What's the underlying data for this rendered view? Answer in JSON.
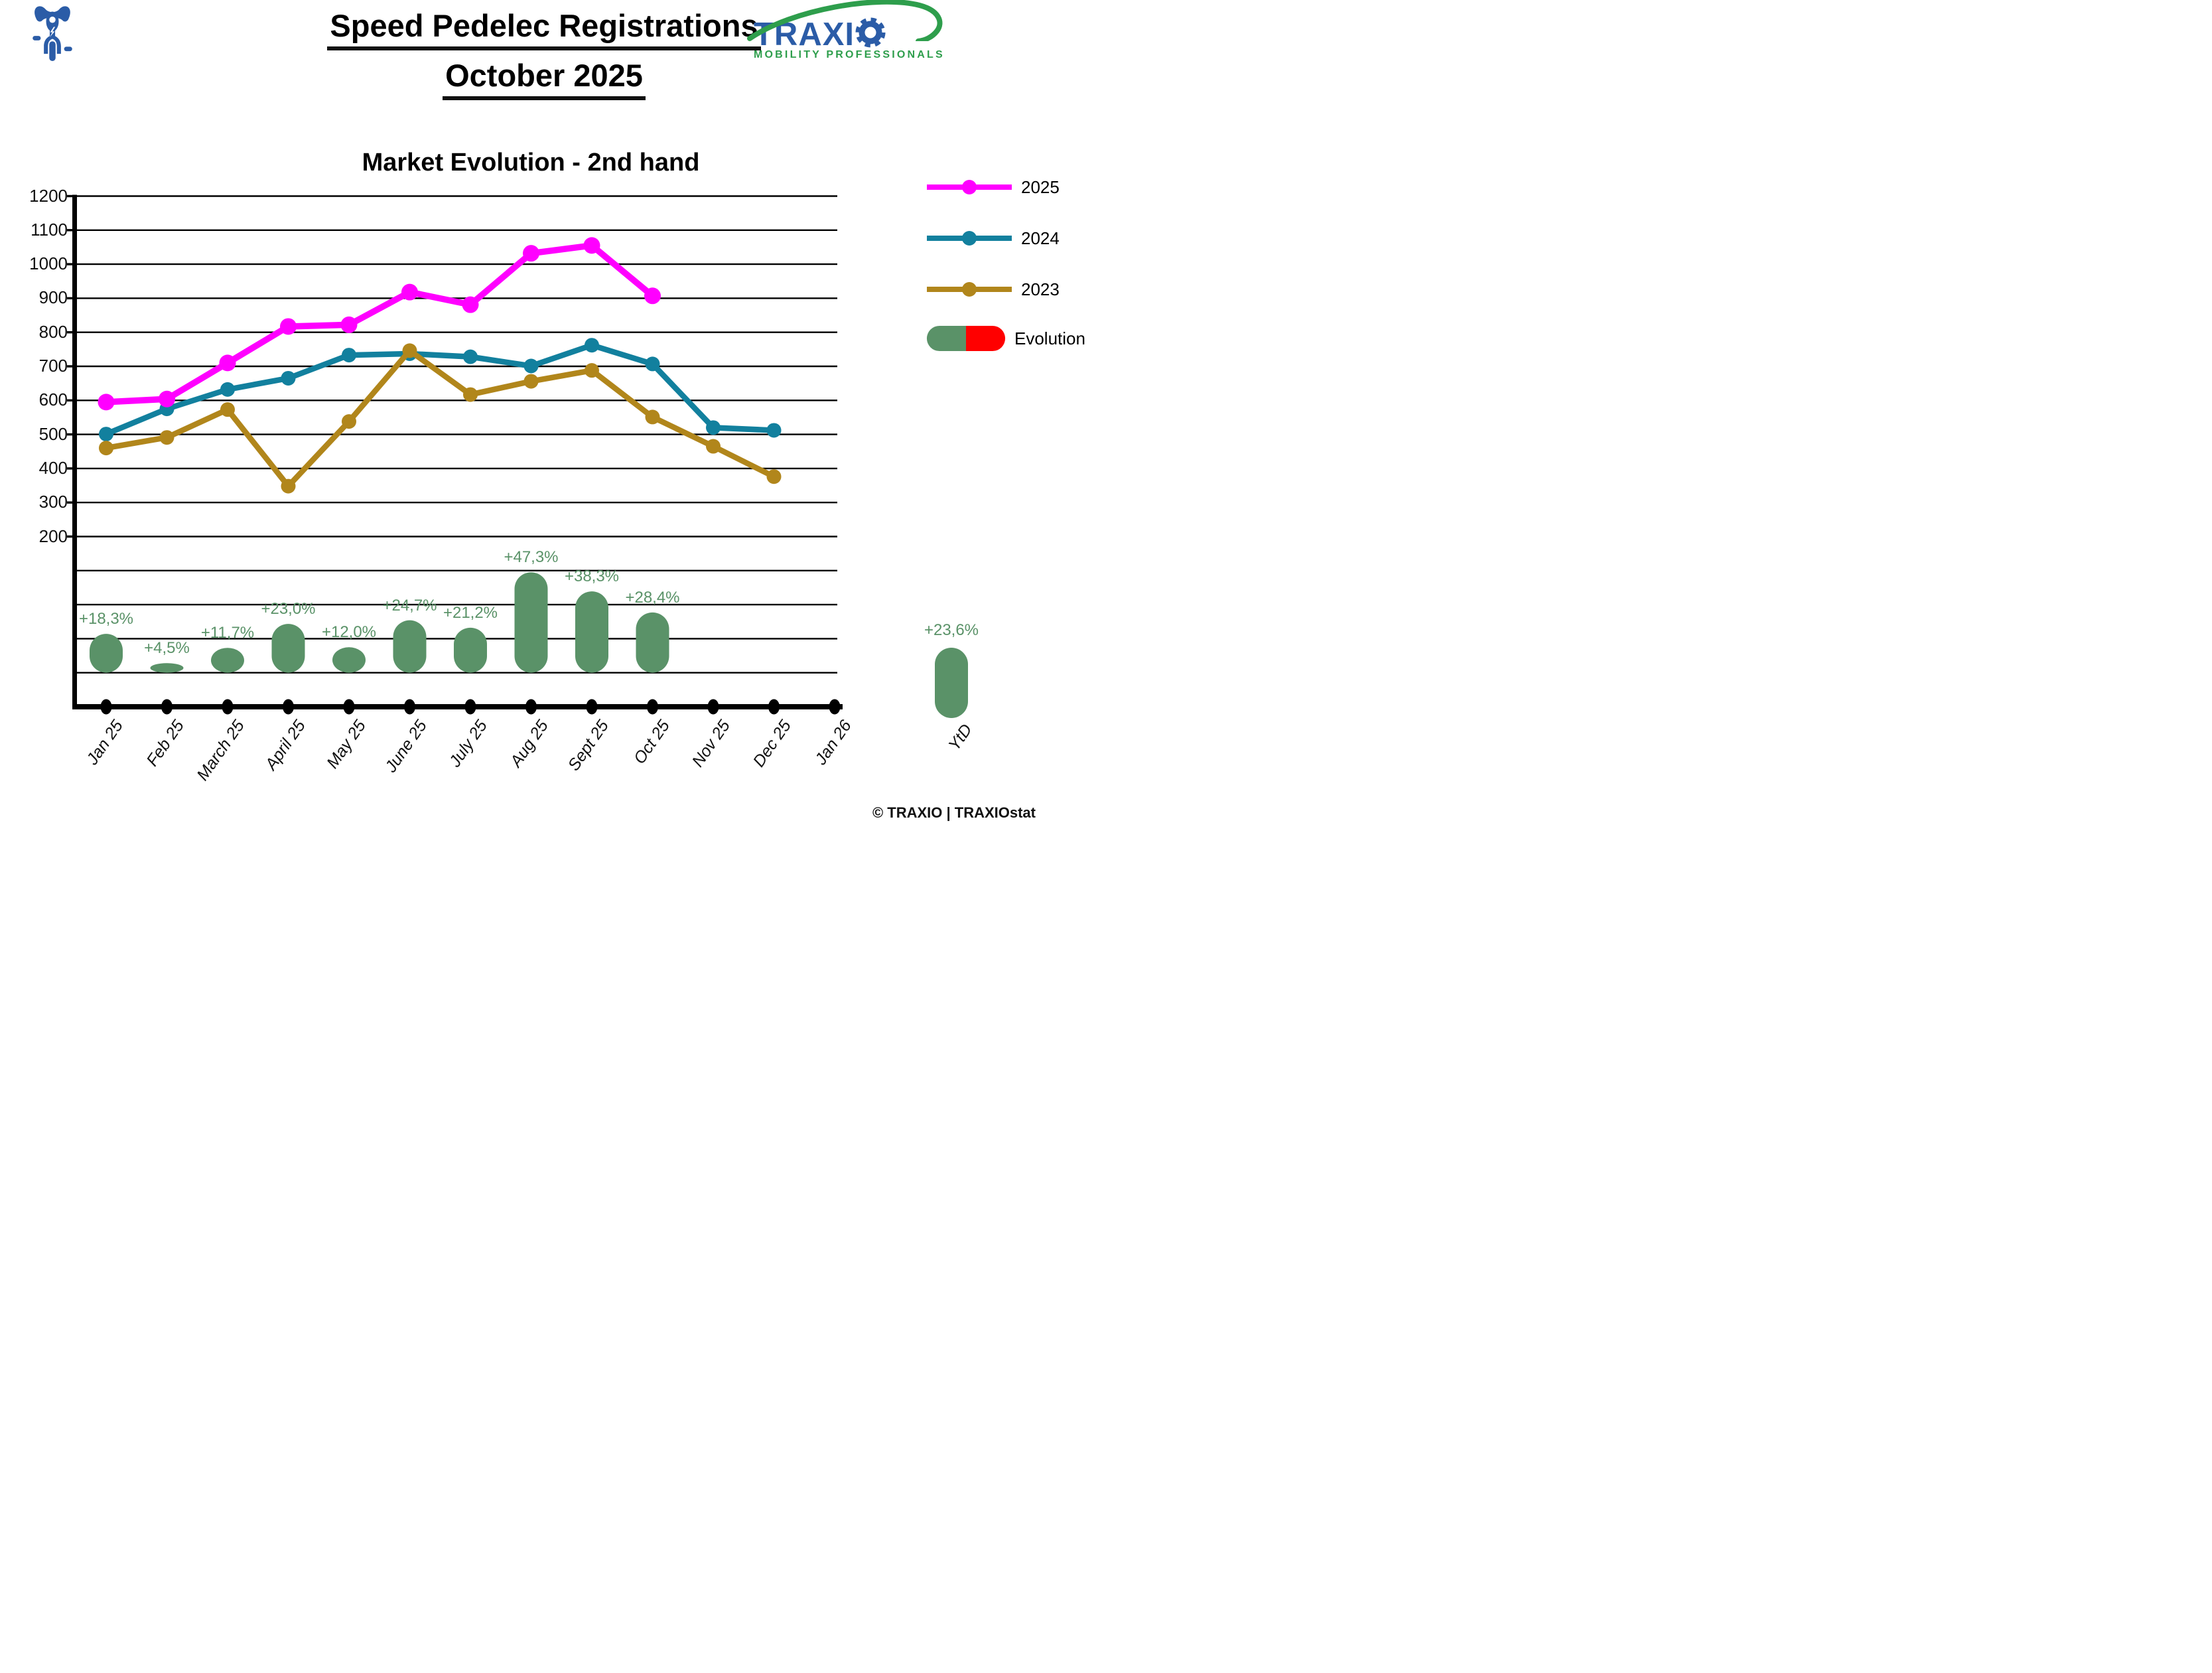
{
  "header": {
    "title_line1": "Speed Pedelec Registrations",
    "title_line2": "October 2025",
    "logo": {
      "brand_text": "TRAXI",
      "brand_full": "TRAXIO",
      "tagline": "MOBILITY PROFESSIONALS",
      "blue": "#2B5CA7",
      "green": "#2E9E4C"
    }
  },
  "chart_data": {
    "type": "line",
    "title": "Market Evolution - 2nd hand",
    "x_categories": [
      "Jan 25",
      "Feb 25",
      "March 25",
      "April 25",
      "May 25",
      "June 25",
      "July 25",
      "Aug 25",
      "Sept 25",
      "Oct 25",
      "Nov 25",
      "Dec 25",
      "Jan 26"
    ],
    "y_ticks": [
      1200,
      1100,
      1000,
      900,
      800,
      700,
      600,
      500,
      400,
      300,
      200
    ],
    "ylim": [
      -300,
      1200
    ],
    "grid": "horizontal-only",
    "legend_position": "right",
    "series": [
      {
        "name": "2025",
        "color": "#FF00FF",
        "values": [
          595,
          604,
          710,
          817,
          822,
          918,
          881,
          1032,
          1055,
          907
        ]
      },
      {
        "name": "2024",
        "color": "#12809E",
        "values": [
          501,
          575,
          632,
          665,
          733,
          737,
          728,
          701,
          762,
          707,
          520,
          512
        ]
      },
      {
        "name": "2023",
        "color": "#B1861B",
        "values": [
          460,
          491,
          573,
          348,
          538,
          746,
          617,
          656,
          688,
          551,
          465,
          376
        ]
      }
    ],
    "evolution": {
      "name": "Evolution",
      "color_positive": "#5A9268",
      "color_negative": "#FF0000",
      "labels": [
        "+18,3%",
        "+4,5%",
        "+11,7%",
        "+23,0%",
        "+12,0%",
        "+24,7%",
        "+21,2%",
        "+47,3%",
        "+38,3%",
        "+28,4%"
      ],
      "values": [
        18.3,
        4.5,
        11.7,
        23.0,
        12.0,
        24.7,
        21.2,
        47.3,
        38.3,
        28.4
      ],
      "ytd": {
        "x_label": "YtD",
        "label": "+23,6%",
        "value": 23.6
      }
    }
  },
  "footer": {
    "copyright": "© TRAXIO | TRAXIOstat"
  }
}
